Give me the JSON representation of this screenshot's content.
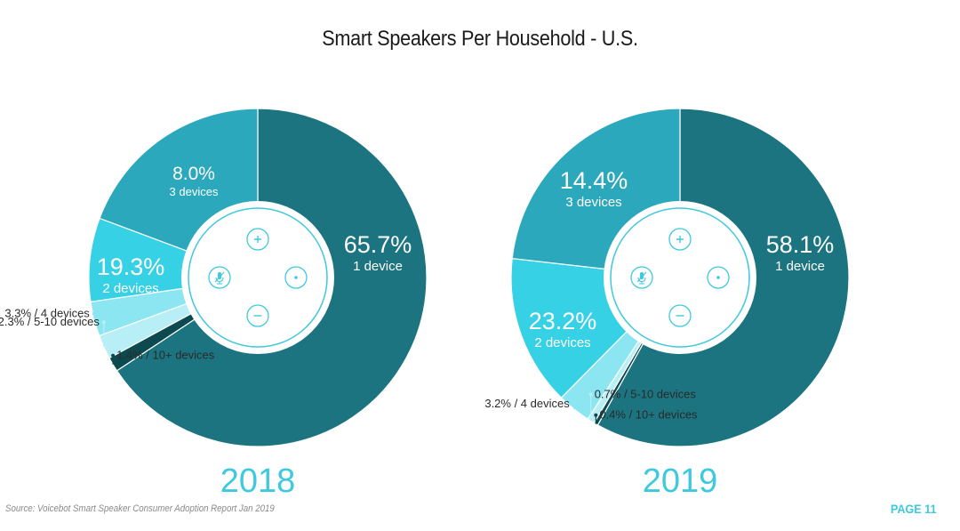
{
  "page": {
    "title": "Smart Speakers Per Household - U.S.",
    "source": "Source: Voicebot Smart Speaker Consumer Adoption Report Jan 2019",
    "page_number": "PAGE 11"
  },
  "colors": {
    "1 device": "#1b7480",
    "2 devices": "#2ba8bc",
    "3 devices": "#37d1e6",
    "4 devices": "#8be6f1",
    "5-10 devices": "#b8eff6",
    "10+ devices": "#0d4a4f",
    "accent": "#3ec9de"
  },
  "chart_data": [
    {
      "type": "pie",
      "title": "2018",
      "unit": "%",
      "categories": [
        "1 device",
        "10+ devices",
        "5-10 devices",
        "4 devices",
        "3 devices",
        "2 devices"
      ],
      "values": [
        65.7,
        1.4,
        2.3,
        3.3,
        8.0,
        19.3
      ],
      "labels": [
        {
          "category": "1 device",
          "value": "65.7%",
          "sub": "1 device",
          "style": "inside"
        },
        {
          "category": "2 devices",
          "value": "19.3%",
          "sub": "2 devices",
          "style": "inside"
        },
        {
          "category": "3 devices",
          "value": "8.0%",
          "sub": "3 devices",
          "style": "inside-small"
        },
        {
          "category": "4 devices",
          "text": "3.3% / 4 devices",
          "style": "callout-left"
        },
        {
          "category": "5-10 devices",
          "text": "2.3% / 5-10 devices",
          "style": "callout-left-high"
        },
        {
          "category": "10+ devices",
          "text": "1.4% / 10+ devices",
          "style": "callout-right"
        }
      ],
      "start": "12 o'clock",
      "direction": "clockwise"
    },
    {
      "type": "pie",
      "title": "2019",
      "unit": "%",
      "categories": [
        "1 device",
        "10+ devices",
        "5-10 devices",
        "4 devices",
        "3 devices",
        "2 devices"
      ],
      "values": [
        58.1,
        0.4,
        0.7,
        3.2,
        14.4,
        23.2
      ],
      "labels": [
        {
          "category": "1 device",
          "value": "58.1%",
          "sub": "1 device",
          "style": "inside"
        },
        {
          "category": "2 devices",
          "value": "23.2%",
          "sub": "2 devices",
          "style": "inside"
        },
        {
          "category": "3 devices",
          "value": "14.4%",
          "sub": "3 devices",
          "style": "inside"
        },
        {
          "category": "4 devices",
          "text": "3.2% / 4 devices",
          "style": "callout-left"
        },
        {
          "category": "5-10 devices",
          "text": "0.7% / 5-10 devices",
          "style": "callout-right-high"
        },
        {
          "category": "10+ devices",
          "text": "0.4% / 10+ devices",
          "style": "callout-right"
        }
      ],
      "start": "12 o'clock",
      "direction": "clockwise"
    }
  ],
  "center_icons": [
    "plus-icon",
    "mic-off-icon",
    "action-dot-icon",
    "minus-icon"
  ]
}
